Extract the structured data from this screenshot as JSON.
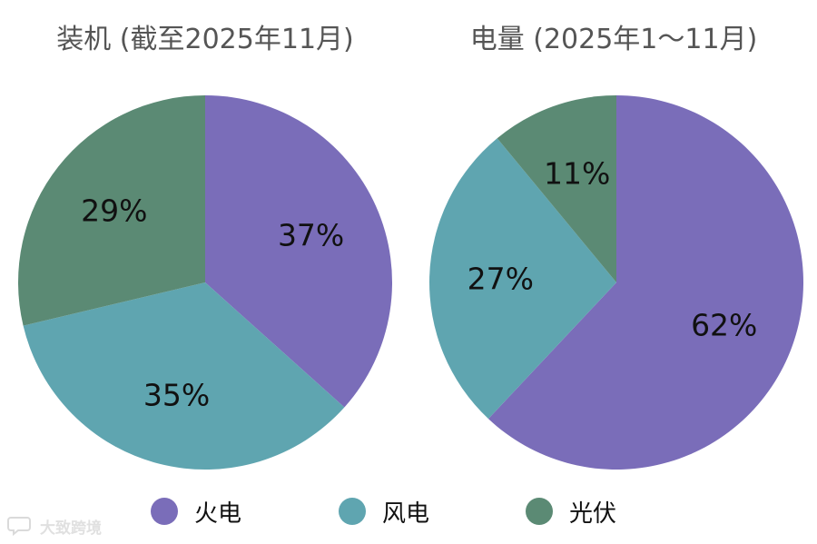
{
  "colors": {
    "thermal": "#7a6db9",
    "wind": "#5fa5b0",
    "solar": "#5b8a74"
  },
  "chart_data": [
    {
      "type": "pie",
      "title": "装机 (截至2025年11月)",
      "slices": [
        {
          "label": "火电",
          "value": 37,
          "display": "37%",
          "color": "#7a6db9"
        },
        {
          "label": "风电",
          "value": 35,
          "display": "35%",
          "color": "#5fa5b0"
        },
        {
          "label": "光伏",
          "value": 29,
          "display": "29%",
          "color": "#5b8a74"
        }
      ]
    },
    {
      "type": "pie",
      "title": "电量 (2025年1～11月)",
      "slices": [
        {
          "label": "火电",
          "value": 62,
          "display": "62%",
          "color": "#7a6db9"
        },
        {
          "label": "风电",
          "value": 27,
          "display": "27%",
          "color": "#5fa5b0"
        },
        {
          "label": "光伏",
          "value": 11,
          "display": "11%",
          "color": "#5b8a74"
        }
      ]
    }
  ],
  "legend": [
    {
      "label": "火电",
      "color": "#7a6db9"
    },
    {
      "label": "风电",
      "color": "#5fa5b0"
    },
    {
      "label": "光伏",
      "color": "#5b8a74"
    }
  ],
  "watermark": {
    "text": "大致跨境",
    "icon": "speech-bubble-icon"
  }
}
